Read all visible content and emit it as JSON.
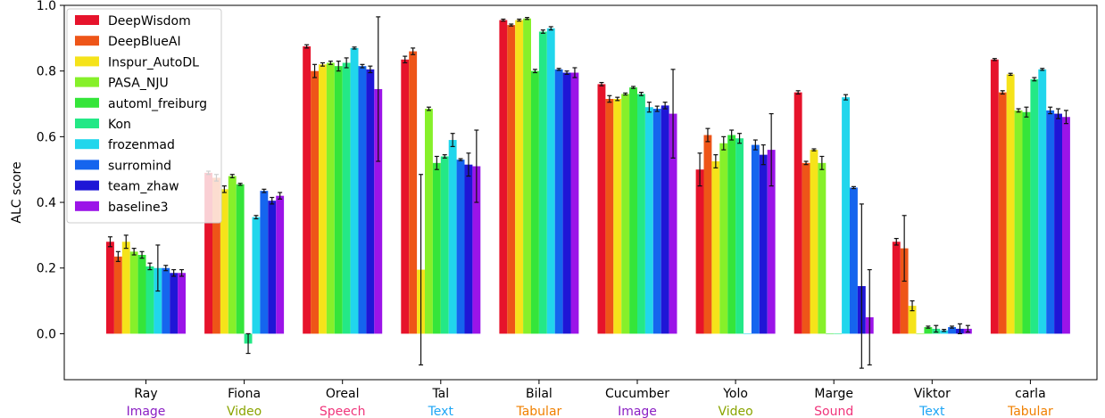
{
  "chart_data": {
    "type": "bar",
    "ylabel": "ALC score",
    "xlabel": "",
    "ylim": [
      -0.14,
      1.0
    ],
    "yticks": [
      "0.0",
      "0.2",
      "0.4",
      "0.6",
      "0.8",
      "1.0"
    ],
    "legend_position": "top-left",
    "categories": [
      "Ray",
      "Fiona",
      "Oreal",
      "Tal",
      "Bilal",
      "Cucumber",
      "Yolo",
      "Marge",
      "Viktor",
      "carla"
    ],
    "modalities": [
      {
        "label": "Image",
        "color": "#8b1fc4"
      },
      {
        "label": "Video",
        "color": "#8aa400"
      },
      {
        "label": "Speech",
        "color": "#f0357b"
      },
      {
        "label": "Text",
        "color": "#1ea6f5"
      },
      {
        "label": "Tabular",
        "color": "#f08000"
      },
      {
        "label": "Image",
        "color": "#8b1fc4"
      },
      {
        "label": "Video",
        "color": "#8aa400"
      },
      {
        "label": "Sound",
        "color": "#f0357b"
      },
      {
        "label": "Text",
        "color": "#1ea6f5"
      },
      {
        "label": "Tabular",
        "color": "#f08000"
      }
    ],
    "series": [
      {
        "name": "DeepWisdom",
        "color": "#e6132b",
        "values": [
          0.28,
          0.49,
          0.875,
          0.835,
          0.955,
          0.76,
          0.5,
          0.735,
          0.28,
          0.835
        ],
        "errors": [
          0.015,
          0.005,
          0.005,
          0.01,
          0.003,
          0.005,
          0.05,
          0.005,
          0.01,
          0.003
        ]
      },
      {
        "name": "DeepBlueAI",
        "color": "#ee5518",
        "values": [
          0.235,
          0.475,
          0.8,
          0.86,
          0.94,
          0.715,
          0.605,
          0.52,
          0.26,
          0.735
        ],
        "errors": [
          0.015,
          0.01,
          0.02,
          0.01,
          0.003,
          0.01,
          0.02,
          0.005,
          0.1,
          0.005
        ]
      },
      {
        "name": "Inspur_AutoDL",
        "color": "#f5e31a",
        "values": [
          0.28,
          0.44,
          0.82,
          0.195,
          0.955,
          0.715,
          0.525,
          0.56,
          0.085,
          0.79
        ],
        "errors": [
          0.02,
          0.01,
          0.005,
          0.29,
          0.003,
          0.005,
          0.02,
          0.003,
          0.015,
          0.003
        ]
      },
      {
        "name": "PASA_NJU",
        "color": "#86f02a",
        "values": [
          0.25,
          0.48,
          0.825,
          0.685,
          0.96,
          0.73,
          0.58,
          0.52,
          0.0,
          0.68
        ]
      },
      {
        "name": "automl_freiburg",
        "color": "#35e53a",
        "values": [
          0.24,
          0.455,
          0.815,
          0.52,
          0.8,
          0.75,
          0.605,
          0.0,
          0.02,
          0.675
        ],
        "errors": [
          0.01,
          0.003,
          0.015,
          0.02,
          0.005,
          0.003,
          0.015,
          0.0,
          0.003,
          0.015
        ]
      },
      {
        "name": "Kon",
        "color": "#24e886",
        "values": [
          0.205,
          -0.03,
          0.825,
          0.54,
          0.92,
          0.73,
          0.595,
          0.0,
          0.015,
          0.775
        ],
        "errors": [
          0.01,
          0.03,
          0.015,
          0.005,
          0.005,
          0.005,
          0.015,
          0.0,
          0.01,
          0.005
        ]
      },
      {
        "name": "frozenmad",
        "color": "#21d6ec",
        "values": [
          0.2,
          0.355,
          0.87,
          0.59,
          0.93,
          0.69,
          0.0,
          0.72,
          0.01,
          0.805
        ],
        "errors": [
          0.07,
          0.005,
          0.003,
          0.02,
          0.005,
          0.015,
          0.0,
          0.008,
          0.003,
          0.003
        ]
      },
      {
        "name": "surromind",
        "color": "#1565ee",
        "values": [
          0.2,
          0.435,
          0.815,
          0.53,
          0.805,
          0.685,
          0.575,
          0.445,
          0.02,
          0.68
        ],
        "errors": [
          0.008,
          0.005,
          0.005,
          0.003,
          0.003,
          0.008,
          0.015,
          0.003,
          0.003,
          0.01
        ]
      },
      {
        "name": "team_zhaw",
        "color": "#1f16d6",
        "values": [
          0.185,
          0.405,
          0.805,
          0.515,
          0.795,
          0.695,
          0.545,
          0.145,
          0.015,
          0.67
        ],
        "errors": [
          0.01,
          0.01,
          0.01,
          0.035,
          0.005,
          0.01,
          0.03,
          0.25,
          0.015,
          0.015
        ]
      },
      {
        "name": "baseline3",
        "color": "#9b14e8",
        "values": [
          0.185,
          0.42,
          0.745,
          0.51,
          0.795,
          0.67,
          0.56,
          0.05,
          0.015,
          0.66
        ],
        "errors": [
          0.01,
          0.01,
          0.22,
          0.11,
          0.015,
          0.135,
          0.11,
          0.145,
          0.01,
          0.02
        ]
      }
    ],
    "pasa_errors": [
      0.01,
      0.005,
      0.005,
      0.005,
      0.003,
      0.003,
      0.02,
      0.02,
      0.0,
      0.005
    ]
  }
}
